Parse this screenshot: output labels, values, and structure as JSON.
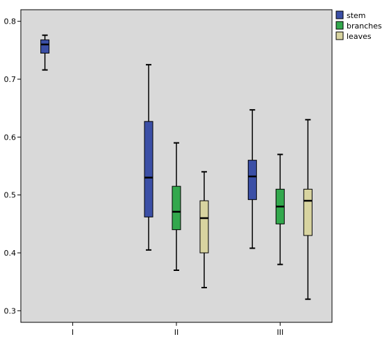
{
  "chart_data": {
    "type": "box",
    "categories": [
      "I",
      "II",
      "III"
    ],
    "ylim": [
      0.28,
      0.82
    ],
    "yticks": [
      0.3,
      0.4,
      0.5,
      0.6,
      0.7,
      0.8
    ],
    "grid": false,
    "legend_position": "top-right",
    "plot_background": "#d9d9d9",
    "series": [
      {
        "name": "stem",
        "color": "#3b4fa6",
        "boxes": [
          {
            "category": "I",
            "min": 0.716,
            "q1": 0.745,
            "median": 0.76,
            "q3": 0.768,
            "max": 0.776
          },
          {
            "category": "II",
            "min": 0.405,
            "q1": 0.462,
            "median": 0.53,
            "q3": 0.627,
            "max": 0.725
          },
          {
            "category": "III",
            "min": 0.408,
            "q1": 0.492,
            "median": 0.532,
            "q3": 0.56,
            "max": 0.647
          }
        ]
      },
      {
        "name": "branches",
        "color": "#33a84d",
        "boxes": [
          {
            "category": "II",
            "min": 0.37,
            "q1": 0.44,
            "median": 0.471,
            "q3": 0.515,
            "max": 0.59
          },
          {
            "category": "III",
            "min": 0.38,
            "q1": 0.45,
            "median": 0.48,
            "q3": 0.51,
            "max": 0.57
          }
        ]
      },
      {
        "name": "leaves",
        "color": "#d8d4a0",
        "boxes": [
          {
            "category": "II",
            "min": 0.34,
            "q1": 0.4,
            "median": 0.46,
            "q3": 0.49,
            "max": 0.54
          },
          {
            "category": "III",
            "min": 0.32,
            "q1": 0.43,
            "median": 0.49,
            "q3": 0.51,
            "max": 0.63
          }
        ]
      }
    ]
  }
}
